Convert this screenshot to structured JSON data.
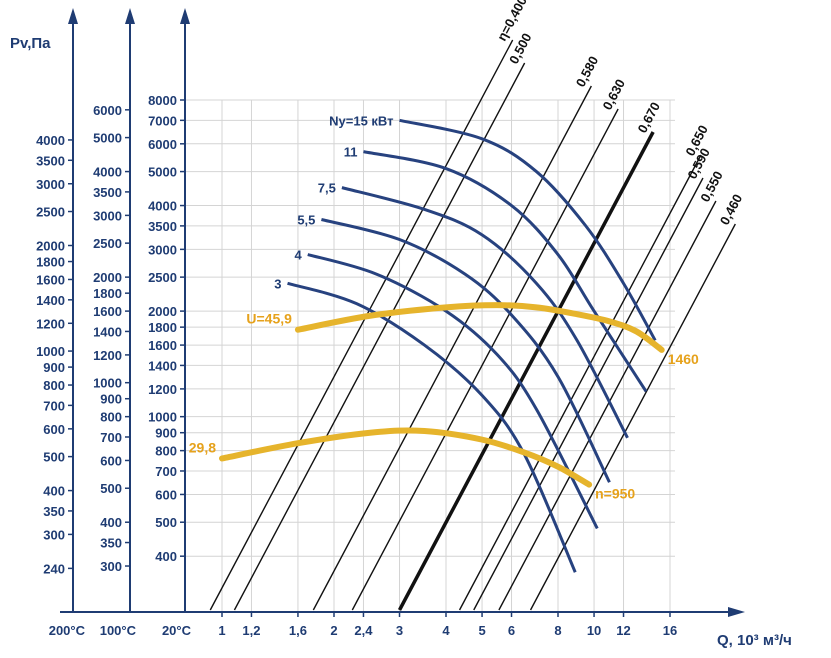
{
  "chart_data": {
    "type": "line",
    "title": "",
    "ylabel": "Pv,Па",
    "xlabel": "Q, 10³ м³/ч",
    "x_ticks": [
      "1",
      "1,2",
      "1,6",
      "2",
      "2,4",
      "3",
      "4",
      "5",
      "6",
      "8",
      "10",
      "12",
      "16"
    ],
    "x_scale": "log",
    "xlim": [
      0.75,
      18
    ],
    "temp_labels": [
      "200°C",
      "100°C",
      "20°C"
    ],
    "y_axes": [
      {
        "temp": "200°C",
        "ticks": [
          "240",
          "300",
          "350",
          "400",
          "500",
          "600",
          "700",
          "800",
          "900",
          "1000",
          "1200",
          "1400",
          "1600",
          "1800",
          "2000",
          "2500",
          "3000",
          "3500",
          "4000"
        ]
      },
      {
        "temp": "100°C",
        "ticks": [
          "300",
          "350",
          "400",
          "500",
          "600",
          "700",
          "800",
          "900",
          "1000",
          "1200",
          "1400",
          "1600",
          "1800",
          "2000",
          "2500",
          "3000",
          "3500",
          "4000",
          "5000",
          "6000"
        ]
      },
      {
        "temp": "20°C",
        "ticks": [
          "400",
          "500",
          "600",
          "700",
          "800",
          "900",
          "1000",
          "1200",
          "1400",
          "1600",
          "1800",
          "2000",
          "2500",
          "3000",
          "3500",
          "4000",
          "5000",
          "6000",
          "7000",
          "8000"
        ]
      }
    ],
    "y_scale": "log",
    "ylim": [
      280,
      11000
    ],
    "efficiency_lines": [
      {
        "label": "η=0,400",
        "q0": 0.93
      },
      {
        "label": "0,500",
        "q0": 1.08
      },
      {
        "label": "0,580",
        "q0": 1.76
      },
      {
        "label": "0,630",
        "q0": 2.24
      },
      {
        "label": "0,670",
        "q0": 3.0,
        "bold": true
      },
      {
        "label": "0,650",
        "q0": 4.35
      },
      {
        "label": "0,590",
        "q0": 4.75
      },
      {
        "label": "0,550",
        "q0": 5.55
      },
      {
        "label": "0,460",
        "q0": 6.75
      }
    ],
    "power_series": [
      {
        "name": "Ny=15 кВт",
        "label": "Ny=15 кВт",
        "x": [
          3.0,
          5.0,
          7.0,
          9.5,
          12.0,
          14.6
        ],
        "y": [
          7000,
          6200,
          5000,
          3500,
          2400,
          1650
        ]
      },
      {
        "name": "11",
        "label": "11",
        "x": [
          2.4,
          4.0,
          6.0,
          8.0,
          10.0,
          13.8
        ],
        "y": [
          5700,
          5100,
          4000,
          2900,
          2000,
          1180
        ]
      },
      {
        "name": "7,5",
        "label": "7,5",
        "x": [
          2.1,
          3.5,
          5.0,
          7.0,
          9.0,
          12.3
        ],
        "y": [
          4500,
          3900,
          3300,
          2400,
          1650,
          870
        ]
      },
      {
        "name": "5,5",
        "label": "5,5",
        "x": [
          1.85,
          3.0,
          4.5,
          6.0,
          8.0,
          11.0
        ],
        "y": [
          3650,
          3200,
          2550,
          1950,
          1300,
          650
        ]
      },
      {
        "name": "4",
        "label": "4",
        "x": [
          1.7,
          2.6,
          4.0,
          5.5,
          7.0,
          10.2
        ],
        "y": [
          2900,
          2550,
          2000,
          1500,
          1050,
          480
        ]
      },
      {
        "name": "3",
        "label": "3",
        "x": [
          1.5,
          2.3,
          3.5,
          5.0,
          6.5,
          8.9
        ],
        "y": [
          2400,
          2100,
          1600,
          1150,
          780,
          360
        ]
      }
    ],
    "speed_series": [
      {
        "name": "U=45,9",
        "label_left": "U=45,9",
        "label_right": "1460",
        "x": [
          1.6,
          2.5,
          4.0,
          5.5,
          7.0,
          9.0,
          11.0,
          13.0,
          15.2
        ],
        "y": [
          1770,
          1940,
          2050,
          2080,
          2050,
          1960,
          1870,
          1750,
          1550
        ]
      },
      {
        "name": "29,8",
        "label_left": "29,8",
        "label_right": "n=950",
        "x": [
          1.0,
          1.6,
          2.5,
          3.5,
          5.0,
          6.5,
          8.0,
          9.7
        ],
        "y": [
          760,
          840,
          900,
          910,
          860,
          790,
          720,
          640
        ]
      }
    ],
    "colors": {
      "axis": "#1f3c73",
      "power": "#27427f",
      "speed": "#e6b42c",
      "speed_label": "#e6a21c",
      "efficiency": "#111111",
      "grid": "#d4d4d4"
    }
  }
}
